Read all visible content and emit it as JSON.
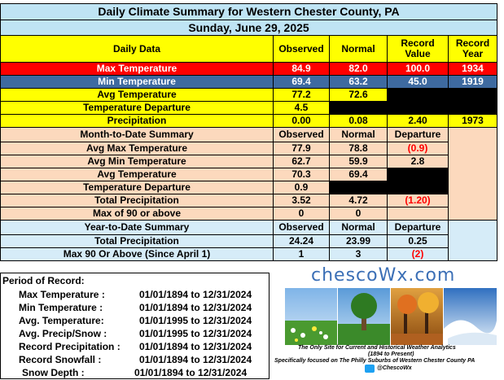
{
  "title": "Daily Climate Summary for Western Chester County, PA",
  "date": "Sunday, June 29, 2025",
  "headers": {
    "daily_data": "Daily Data",
    "observed": "Observed",
    "normal": "Normal",
    "record_value": "Record Value",
    "record_year": "Record Year"
  },
  "daily": {
    "max_temp": {
      "label": "Max Temperature",
      "observed": "84.9",
      "normal": "82.0",
      "record": "100.0",
      "year": "1934"
    },
    "min_temp": {
      "label": "Min Temperature",
      "observed": "69.4",
      "normal": "63.2",
      "record": "45.0",
      "year": "1919"
    },
    "avg_temp": {
      "label": "Avg Temperature",
      "observed": "77.2",
      "normal": "72.6"
    },
    "temp_dep": {
      "label": "Temperature Departure",
      "observed": "4.5"
    },
    "precip": {
      "label": "Precipitation",
      "observed": "0.00",
      "normal": "0.08",
      "record": "2.40",
      "year": "1973"
    }
  },
  "mtd": {
    "header": "Month-to-Date Summary",
    "observed": "Observed",
    "normal": "Normal",
    "departure": "Departure",
    "rows": {
      "avg_max": {
        "label": "Avg Max Temperature",
        "observed": "77.9",
        "normal": "78.8",
        "departure": "(0.9)"
      },
      "avg_min": {
        "label": "Avg Min Temperature",
        "observed": "62.7",
        "normal": "59.9",
        "departure": "2.8"
      },
      "avg_temp": {
        "label": "Avg Temperature",
        "observed": "70.3",
        "normal": "69.4"
      },
      "temp_dep": {
        "label": "Temperature Departure",
        "observed": "0.9"
      },
      "total_precip": {
        "label": "Total Precipitation",
        "observed": "3.52",
        "normal": "4.72",
        "departure": "(1.20)"
      },
      "max90": {
        "label": "Max of 90 or above",
        "observed": "0",
        "normal": "0"
      }
    }
  },
  "ytd": {
    "header": "Year-to-Date Summary",
    "observed": "Observed",
    "normal": "Normal",
    "departure": "Departure",
    "rows": {
      "total_precip": {
        "label": "Total Precipitation",
        "observed": "24.24",
        "normal": "23.99",
        "departure": "0.25"
      },
      "max90": {
        "label": "Max 90 Or Above (Since April 1)",
        "observed": "1",
        "normal": "3",
        "departure": "(2)"
      }
    }
  },
  "period": {
    "header": "Period of Record:",
    "items": [
      {
        "label": "Max Temperature :",
        "range": "01/01/1894 to 12/31/2024"
      },
      {
        "label": "Min Temperature :",
        "range": "01/01/1894 to 12/31/2024"
      },
      {
        "label": "Avg. Temperature:",
        "range": "01/01/1995 to 12/31/2024"
      },
      {
        "label": "Avg. Precip/Snow :",
        "range": "01/01/1995 to 12/31/2024"
      },
      {
        "label": "Record Precipitation :",
        "range": "01/01/1894 to 12/31/2024"
      },
      {
        "label": "Record Snowfall :",
        "range": "01/01/1894 to 12/31/2024"
      },
      {
        "label": "Snow Depth :",
        "range": "01/01/1894 to 12/31/2024"
      }
    ]
  },
  "logo": {
    "name": "chescoWx.com",
    "tagline1": "The Only Site for Current and Historical Weather Analytics",
    "tagline2": "(1894 to Present)",
    "tagline3": "Specifically focused on The Philly Suburbs of Western Chester County PA",
    "twitter": "@ChescoWx"
  },
  "colors": {
    "title_bg": "#bfe4f4",
    "header_yellow": "#ffff00",
    "max_red": "#ff0000",
    "min_blue": "#3e6aa0",
    "peach": "#fcd9bd",
    "light_blue": "#d6ecf8",
    "black": "#000000"
  }
}
